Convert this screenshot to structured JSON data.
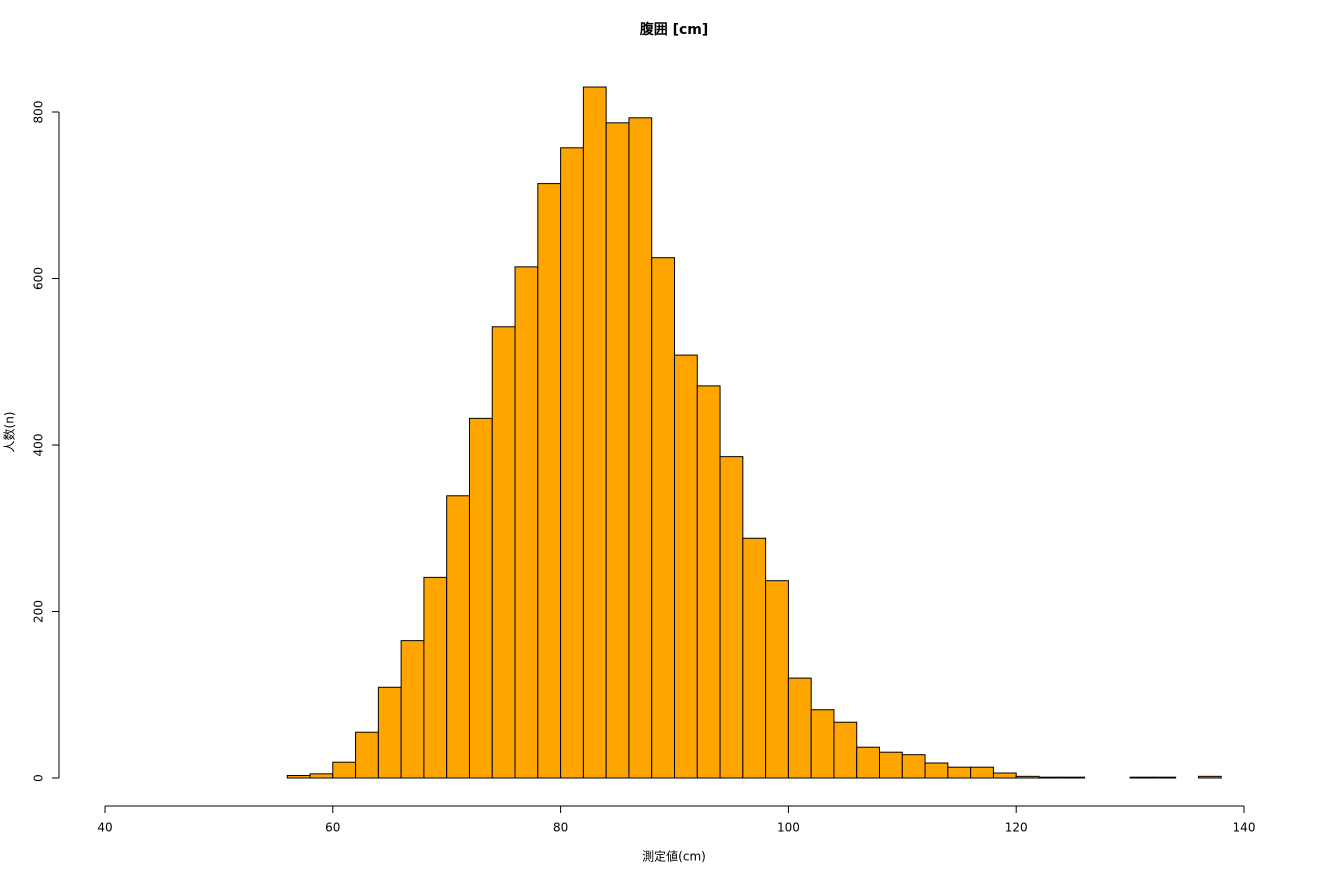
{
  "chart_data": {
    "type": "histogram",
    "title": "腹囲 [cm]",
    "x_label": "測定値(cm)",
    "y_label": "人数(n)",
    "bins": [
      56,
      58,
      60,
      62,
      64,
      66,
      68,
      70,
      72,
      74,
      76,
      78,
      80,
      82,
      84,
      86,
      88,
      90,
      92,
      94,
      96,
      98,
      100,
      102,
      104,
      106,
      108,
      110,
      112,
      114,
      116,
      118,
      120,
      122,
      124,
      126,
      128,
      130,
      132,
      134,
      136,
      138
    ],
    "values": [
      3,
      5,
      19,
      55,
      109,
      165,
      241,
      339,
      432,
      542,
      614,
      714,
      757,
      830,
      787,
      793,
      625,
      508,
      471,
      386,
      288,
      237,
      120,
      82,
      67,
      37,
      31,
      28,
      18,
      13,
      13,
      6,
      2,
      1,
      1,
      0,
      0,
      1,
      1,
      0,
      2
    ],
    "color": "#FFA500",
    "xlim": [
      40,
      140
    ],
    "xticks": [
      40,
      60,
      80,
      100,
      120,
      140
    ],
    "ylim": [
      0,
      800
    ],
    "yticks": [
      0,
      200,
      400,
      600,
      800
    ]
  }
}
